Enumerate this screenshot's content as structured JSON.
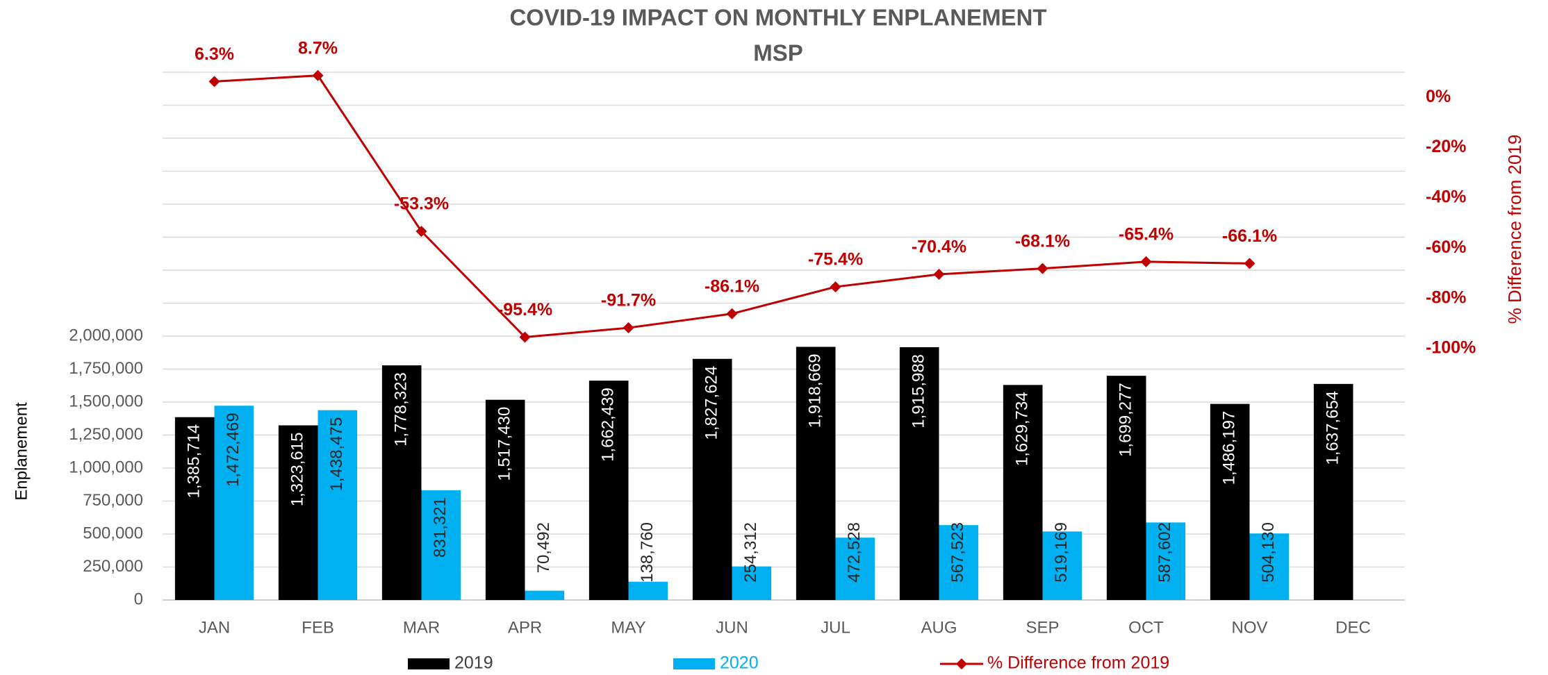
{
  "chart_data": {
    "type": "bar-line",
    "title": "COVID-19 IMPACT ON MONTHLY ENPLANEMENT",
    "subtitle": "MSP",
    "y_label": "Enplanement",
    "y2_label": "% Difference from 2019",
    "categories": [
      "JAN",
      "FEB",
      "MAR",
      "APR",
      "MAY",
      "JUN",
      "JUL",
      "AUG",
      "SEP",
      "OCT",
      "NOV",
      "DEC"
    ],
    "series": [
      {
        "name": "2019",
        "type": "bar",
        "color": "#000000",
        "values": [
          1385714,
          1323615,
          1778323,
          1517430,
          1662439,
          1827624,
          1918669,
          1915988,
          1629734,
          1699277,
          1486197,
          1637654
        ],
        "value_labels": [
          "1,385,714",
          "1,323,615",
          "1,778,323",
          "1,517,430",
          "1,662,439",
          "1,827,624",
          "1,918,669",
          "1,915,988",
          "1,629,734",
          "1,699,277",
          "1,486,197",
          "1,637,654"
        ]
      },
      {
        "name": "2020",
        "type": "bar",
        "color": "#00b0f0",
        "values": [
          1472469,
          1438475,
          831321,
          70492,
          138760,
          254312,
          472528,
          567523,
          519169,
          587602,
          504130,
          null
        ],
        "value_labels": [
          "1,472,469",
          "1,438,475",
          "831,321",
          "70,492",
          "138,760",
          "254,312",
          "472,528",
          "567,523",
          "519,169",
          "587,602",
          "504,130",
          null
        ]
      },
      {
        "name": "% Difference from 2019",
        "type": "line",
        "axis": "y2",
        "color": "#c00000",
        "values": [
          6.3,
          8.7,
          -53.3,
          -95.4,
          -91.7,
          -86.1,
          -75.4,
          -70.4,
          -68.1,
          -65.4,
          -66.1,
          null
        ],
        "value_labels": [
          "6.3%",
          "8.7%",
          "-53.3%",
          "-95.4%",
          "-91.7%",
          "-86.1%",
          "-75.4%",
          "-70.4%",
          "-68.1%",
          "-65.4%",
          "-66.1%",
          null
        ]
      }
    ],
    "ylim": [
      0,
      4000000
    ],
    "yticks": [
      0,
      {
        "value": 250000,
        "label": "250,000"
      },
      {
        "value": 500000,
        "label": "500,000"
      },
      {
        "value": 750000,
        "label": "750,000"
      },
      {
        "value": 1000000,
        "label": "1,000,000"
      },
      {
        "value": 1250000,
        "label": "1,250,000"
      },
      {
        "value": 1500000,
        "label": "1,500,000"
      },
      {
        "value": 1750000,
        "label": "1,750,000"
      },
      {
        "value": 2000000,
        "label": "2,000,000"
      }
    ],
    "ygrid": [
      2250000,
      2500000,
      2750000,
      3000000,
      3250000,
      3500000,
      3750000,
      4000000
    ],
    "y2lim": [
      -200,
      10
    ],
    "y2ticks": [
      {
        "value": 0,
        "label": "0%"
      },
      {
        "value": -20,
        "label": "-20%"
      },
      {
        "value": -40,
        "label": "-40%"
      },
      {
        "value": -60,
        "label": "-60%"
      },
      {
        "value": -80,
        "label": "-80%"
      },
      {
        "value": -100,
        "label": "-100%"
      }
    ],
    "grid": true,
    "legend": "bottom"
  }
}
